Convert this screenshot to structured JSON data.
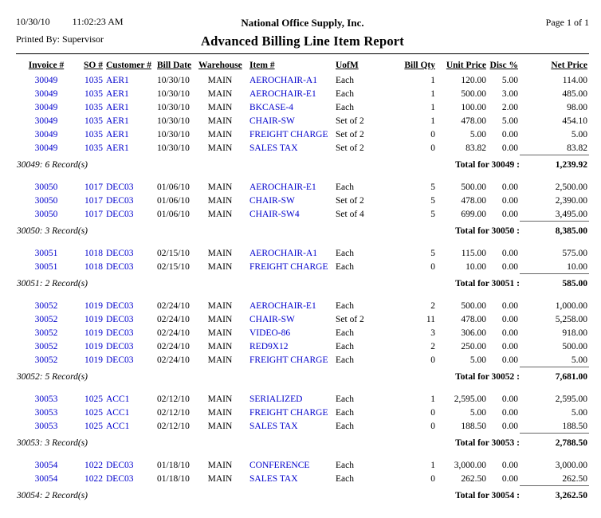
{
  "header": {
    "date": "10/30/10",
    "time": "11:02:23 AM",
    "printed_by": "Printed By: Supervisor",
    "company": "National Office Supply, Inc.",
    "title": "Advanced Billing Line Item Report",
    "page_label": "Page 1 of 1"
  },
  "colors": {
    "link": "#0000CC"
  },
  "table": {
    "columns": [
      "Invoice #",
      "SO #",
      "Customer #",
      "Bill Date",
      "Warehouse",
      "Item #",
      "UofM",
      "Bill Qty",
      "Unit Price",
      "Disc %",
      "Net Price"
    ],
    "groups": [
      {
        "id": "30049",
        "rows": [
          [
            "30049",
            "1035",
            "AER1",
            "10/30/10",
            "MAIN",
            "AEROCHAIR-A1",
            "Each",
            "1",
            "120.00",
            "5.00",
            "114.00"
          ],
          [
            "30049",
            "1035",
            "AER1",
            "10/30/10",
            "MAIN",
            "AEROCHAIR-E1",
            "Each",
            "1",
            "500.00",
            "3.00",
            "485.00"
          ],
          [
            "30049",
            "1035",
            "AER1",
            "10/30/10",
            "MAIN",
            "BKCASE-4",
            "Each",
            "1",
            "100.00",
            "2.00",
            "98.00"
          ],
          [
            "30049",
            "1035",
            "AER1",
            "10/30/10",
            "MAIN",
            "CHAIR-SW",
            "Set of 2",
            "1",
            "478.00",
            "5.00",
            "454.10"
          ],
          [
            "30049",
            "1035",
            "AER1",
            "10/30/10",
            "MAIN",
            "FREIGHT CHARGE",
            "Set of 2",
            "0",
            "5.00",
            "0.00",
            "5.00"
          ],
          [
            "30049",
            "1035",
            "AER1",
            "10/30/10",
            "MAIN",
            "SALES TAX",
            "Set of 2",
            "0",
            "83.82",
            "0.00",
            "83.82"
          ]
        ],
        "count_label": "30049: 6 Record(s)",
        "total_label": "Total for 30049 :",
        "total_value": "1,239.92"
      },
      {
        "id": "30050",
        "rows": [
          [
            "30050",
            "1017",
            "DEC03",
            "01/06/10",
            "MAIN",
            "AEROCHAIR-E1",
            "Each",
            "5",
            "500.00",
            "0.00",
            "2,500.00"
          ],
          [
            "30050",
            "1017",
            "DEC03",
            "01/06/10",
            "MAIN",
            "CHAIR-SW",
            "Set of 2",
            "5",
            "478.00",
            "0.00",
            "2,390.00"
          ],
          [
            "30050",
            "1017",
            "DEC03",
            "01/06/10",
            "MAIN",
            "CHAIR-SW4",
            "Set of 4",
            "5",
            "699.00",
            "0.00",
            "3,495.00"
          ]
        ],
        "count_label": "30050: 3 Record(s)",
        "total_label": "Total for 30050 :",
        "total_value": "8,385.00"
      },
      {
        "id": "30051",
        "rows": [
          [
            "30051",
            "1018",
            "DEC03",
            "02/15/10",
            "MAIN",
            "AEROCHAIR-A1",
            "Each",
            "5",
            "115.00",
            "0.00",
            "575.00"
          ],
          [
            "30051",
            "1018",
            "DEC03",
            "02/15/10",
            "MAIN",
            "FREIGHT CHARGE",
            "Each",
            "0",
            "10.00",
            "0.00",
            "10.00"
          ]
        ],
        "count_label": "30051: 2 Record(s)",
        "total_label": "Total for 30051 :",
        "total_value": "585.00"
      },
      {
        "id": "30052",
        "rows": [
          [
            "30052",
            "1019",
            "DEC03",
            "02/24/10",
            "MAIN",
            "AEROCHAIR-E1",
            "Each",
            "2",
            "500.00",
            "0.00",
            "1,000.00"
          ],
          [
            "30052",
            "1019",
            "DEC03",
            "02/24/10",
            "MAIN",
            "CHAIR-SW",
            "Set of 2",
            "11",
            "478.00",
            "0.00",
            "5,258.00"
          ],
          [
            "30052",
            "1019",
            "DEC03",
            "02/24/10",
            "MAIN",
            "VIDEO-86",
            "Each",
            "3",
            "306.00",
            "0.00",
            "918.00"
          ],
          [
            "30052",
            "1019",
            "DEC03",
            "02/24/10",
            "MAIN",
            "RED9X12",
            "Each",
            "2",
            "250.00",
            "0.00",
            "500.00"
          ],
          [
            "30052",
            "1019",
            "DEC03",
            "02/24/10",
            "MAIN",
            "FREIGHT CHARGE",
            "Each",
            "0",
            "5.00",
            "0.00",
            "5.00"
          ]
        ],
        "count_label": "30052: 5 Record(s)",
        "total_label": "Total for 30052 :",
        "total_value": "7,681.00"
      },
      {
        "id": "30053",
        "rows": [
          [
            "30053",
            "1025",
            "ACC1",
            "02/12/10",
            "MAIN",
            "SERIALIZED",
            "Each",
            "1",
            "2,595.00",
            "0.00",
            "2,595.00"
          ],
          [
            "30053",
            "1025",
            "ACC1",
            "02/12/10",
            "MAIN",
            "FREIGHT CHARGE",
            "Each",
            "0",
            "5.00",
            "0.00",
            "5.00"
          ],
          [
            "30053",
            "1025",
            "ACC1",
            "02/12/10",
            "MAIN",
            "SALES TAX",
            "Each",
            "0",
            "188.50",
            "0.00",
            "188.50"
          ]
        ],
        "count_label": "30053: 3 Record(s)",
        "total_label": "Total for 30053 :",
        "total_value": "2,788.50"
      },
      {
        "id": "30054",
        "rows": [
          [
            "30054",
            "1022",
            "DEC03",
            "01/18/10",
            "MAIN",
            "CONFERENCE",
            "Each",
            "1",
            "3,000.00",
            "0.00",
            "3,000.00"
          ],
          [
            "30054",
            "1022",
            "DEC03",
            "01/18/10",
            "MAIN",
            "SALES TAX",
            "Each",
            "0",
            "262.50",
            "0.00",
            "262.50"
          ]
        ],
        "count_label": "30054: 2 Record(s)",
        "total_label": "Total for 30054 :",
        "total_value": "3,262.50"
      }
    ]
  }
}
